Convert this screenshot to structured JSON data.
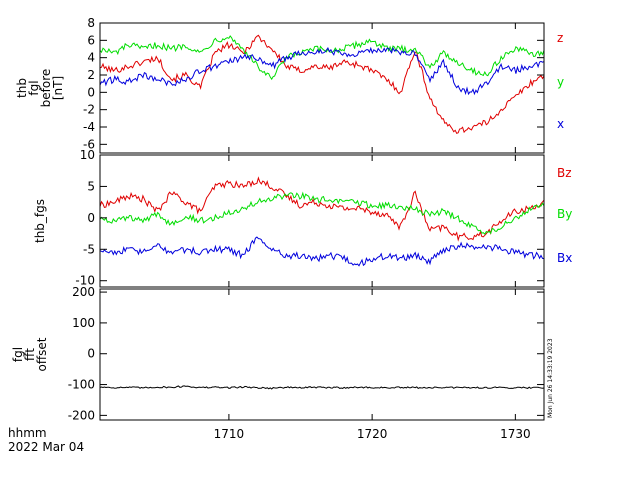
{
  "figure": {
    "time_axis": {
      "tick_labels": [
        "1710",
        "1720",
        "1730"
      ],
      "tick_minutes": [
        1710,
        1720,
        1730
      ],
      "range_minutes": [
        1701.0,
        1732.0
      ],
      "footer_line1": "hhmm",
      "footer_line2": "2022 Mar 04"
    },
    "timestamp": "Mon Jun 26 14:33:19 2023"
  },
  "chart_data": [
    {
      "type": "line",
      "panel": "fgl_before",
      "ylabel_lines": [
        "thb",
        "fgl",
        "before",
        "[nT]"
      ],
      "ylim": [
        -7,
        8
      ],
      "yticks": [
        -6,
        -4,
        -2,
        0,
        2,
        4,
        6,
        8
      ],
      "ytick_labels": [
        "-6",
        "-4",
        "-2",
        "0",
        "2",
        "4",
        "6",
        "8"
      ],
      "x": [
        1701,
        1702,
        1703,
        1704,
        1705,
        1706,
        1707,
        1708,
        1709,
        1710,
        1711,
        1712,
        1713,
        1714,
        1715,
        1716,
        1717,
        1718,
        1719,
        1720,
        1721,
        1722,
        1723,
        1724,
        1725,
        1726,
        1727,
        1728,
        1729,
        1730,
        1731,
        1732
      ],
      "series": [
        {
          "name": "z",
          "color": "#e00000",
          "values": [
            3.0,
            2.5,
            3.0,
            3.5,
            4.0,
            1.5,
            2.0,
            0.5,
            4.5,
            5.5,
            4.5,
            6.5,
            5.0,
            3.0,
            2.5,
            3.0,
            2.8,
            3.5,
            3.2,
            2.5,
            1.5,
            0.0,
            5.0,
            -0.5,
            -3.5,
            -4.5,
            -4.0,
            -3.5,
            -2.0,
            -0.5,
            1.0,
            2.0
          ]
        },
        {
          "name": "y",
          "color": "#00dd00",
          "values": [
            5.0,
            4.5,
            5.5,
            5.0,
            5.5,
            5.0,
            5.5,
            4.5,
            6.0,
            6.5,
            5.0,
            3.0,
            1.5,
            4.0,
            4.5,
            5.0,
            4.8,
            5.0,
            5.5,
            6.0,
            5.0,
            5.0,
            5.0,
            3.0,
            4.5,
            3.5,
            2.5,
            2.0,
            4.0,
            5.0,
            4.5,
            4.5
          ]
        },
        {
          "name": "x",
          "color": "#0000dd",
          "values": [
            1.0,
            1.5,
            1.2,
            2.0,
            1.5,
            1.0,
            1.5,
            2.5,
            3.0,
            3.5,
            4.0,
            4.0,
            3.0,
            4.0,
            4.5,
            4.8,
            4.8,
            4.5,
            4.5,
            4.8,
            5.0,
            4.5,
            4.5,
            1.5,
            3.5,
            0.5,
            0.0,
            1.0,
            3.0,
            2.5,
            3.0,
            3.5
          ]
        }
      ]
    },
    {
      "type": "line",
      "panel": "fgs",
      "ylabel_lines": [
        "thb_fgs"
      ],
      "ylim": [
        -11,
        10
      ],
      "yticks": [
        -10,
        -5,
        0,
        5,
        10
      ],
      "ytick_labels": [
        "-10",
        "-5",
        "0",
        "5",
        "10"
      ],
      "x": [
        1701,
        1702,
        1703,
        1704,
        1705,
        1706,
        1707,
        1708,
        1709,
        1710,
        1711,
        1712,
        1713,
        1714,
        1715,
        1716,
        1717,
        1718,
        1719,
        1720,
        1721,
        1722,
        1723,
        1724,
        1725,
        1726,
        1727,
        1728,
        1729,
        1730,
        1731,
        1732
      ],
      "series": [
        {
          "name": "Bz",
          "color": "#e00000",
          "values": [
            2.0,
            2.5,
            3.5,
            3.0,
            1.0,
            4.0,
            2.5,
            1.0,
            5.0,
            5.5,
            5.0,
            6.0,
            5.0,
            3.5,
            2.0,
            2.5,
            2.0,
            1.5,
            1.5,
            1.0,
            0.5,
            -1.5,
            4.0,
            -2.0,
            -1.5,
            -3.0,
            -3.0,
            -2.5,
            -0.5,
            1.0,
            1.5,
            2.5
          ]
        },
        {
          "name": "By",
          "color": "#00dd00",
          "values": [
            0.0,
            -0.5,
            0.0,
            -0.5,
            0.5,
            -1.0,
            0.5,
            -0.5,
            0.0,
            1.0,
            1.5,
            2.5,
            3.0,
            3.5,
            3.5,
            3.0,
            2.8,
            2.5,
            2.5,
            2.0,
            2.0,
            1.5,
            1.5,
            0.5,
            1.0,
            0.0,
            -1.5,
            -2.5,
            -1.5,
            0.0,
            1.5,
            2.0
          ]
        },
        {
          "name": "Bx",
          "color": "#0000dd",
          "values": [
            -5.0,
            -5.5,
            -5.0,
            -5.5,
            -4.5,
            -5.5,
            -5.0,
            -5.5,
            -5.0,
            -5.0,
            -6.0,
            -3.0,
            -5.0,
            -6.0,
            -6.0,
            -6.5,
            -6.0,
            -6.5,
            -7.5,
            -6.5,
            -6.0,
            -6.5,
            -6.0,
            -7.0,
            -5.0,
            -4.5,
            -4.5,
            -4.5,
            -5.0,
            -5.5,
            -6.0,
            -6.0
          ]
        }
      ]
    },
    {
      "type": "line",
      "panel": "fgl_fft_offset",
      "ylabel_lines": [
        "fgl",
        "fft",
        "offset"
      ],
      "ylim": [
        -215,
        210
      ],
      "yticks": [
        -200,
        -100,
        0,
        100,
        200
      ],
      "ytick_labels": [
        "-200",
        "-100",
        "0",
        "100",
        "200"
      ],
      "x": [
        1701,
        1702,
        1703,
        1704,
        1705,
        1706,
        1707,
        1708,
        1709,
        1710,
        1711,
        1712,
        1713,
        1714,
        1715,
        1716,
        1717,
        1718,
        1719,
        1720,
        1721,
        1722,
        1723,
        1724,
        1725,
        1726,
        1727,
        1728,
        1729,
        1730,
        1731,
        1732
      ],
      "series": [
        {
          "name": "offset",
          "color": "#000000",
          "values": [
            -108,
            -110,
            -109,
            -111,
            -108,
            -109,
            -105,
            -110,
            -109,
            -110,
            -108,
            -110,
            -112,
            -109,
            -110,
            -109,
            -110,
            -110,
            -109,
            -110,
            -110,
            -110,
            -110,
            -110,
            -110,
            -110,
            -110,
            -110,
            -110,
            -110,
            -110,
            -110
          ]
        }
      ]
    }
  ]
}
